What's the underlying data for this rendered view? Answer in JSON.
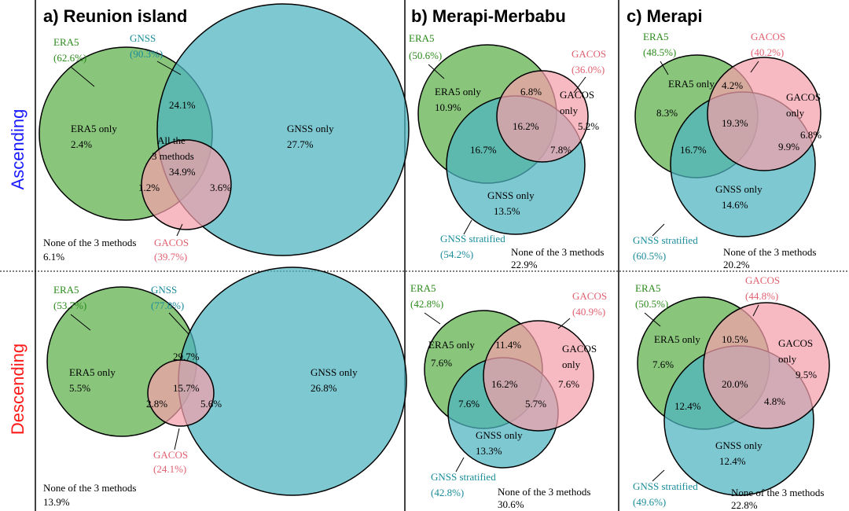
{
  "columns": [
    "a) Reunion island",
    "b) Merapi-Merbabu",
    "c) Merapi"
  ],
  "rows": [
    "Ascending",
    "Descending"
  ],
  "panels": [
    {
      "texts": [
        "ERA5",
        "(62.6%)",
        "GNSS",
        "(90.3%)",
        "ERA5 only",
        "2.4%",
        "24.1%",
        "GNSS only",
        "27.7%",
        "All the",
        "3 methods",
        "34.9%",
        "1.2%",
        "3.6%",
        "GACOS",
        "(39.7%)",
        "None of the 3 methods",
        "6.1%"
      ]
    },
    {
      "texts": [
        "ERA5",
        "(50.6%)",
        "GACOS",
        "(36.0%)",
        "ERA5 only",
        "10.9%",
        "6.8%",
        "GACOS",
        "only",
        "5.2%",
        "16.2%",
        "16.7%",
        "7.8%",
        "GNSS only",
        "13.5%",
        "GNSS stratified",
        "(54.2%)",
        "None of the 3 methods",
        "22.9%"
      ]
    },
    {
      "texts": [
        "ERA5",
        "(48.5%)",
        "GACOS",
        "(40.2%)",
        "ERA5 only",
        "8.3%",
        "4.2%",
        "GACOS",
        "only",
        "6.8%",
        "19.3%",
        "16.7%",
        "9.9%",
        "GNSS only",
        "14.6%",
        "GNSS stratified",
        "(60.5%)",
        "None of the 3 methods",
        "20.2%"
      ]
    },
    {
      "texts": [
        "ERA5",
        "(53.7%)",
        "GNSS",
        "(77.8%)",
        "ERA5 only",
        "5.5%",
        "29.7%",
        "GNSS only",
        "26.8%",
        "15.7%",
        "2.8%",
        "5.6%",
        "GACOS",
        "(24.1%)",
        "None of the 3 methods",
        "13.9%"
      ]
    },
    {
      "texts": [
        "ERA5",
        "(42.8%)",
        "GACOS",
        "(40.9%)",
        "ERA5 only",
        "7.6%",
        "11.4%",
        "GACOS",
        "only",
        "7.6%",
        "16.2%",
        "7.6%",
        "5.7%",
        "GNSS only",
        "13.3%",
        "GNSS stratified",
        "(42.8%)",
        "None of the 3 methods",
        "30.6%"
      ]
    },
    {
      "texts": [
        "ERA5",
        "(50.5%)",
        "GACOS",
        "(44.8%)",
        "ERA5 only",
        "10.5%",
        "GACOS",
        "only",
        "7.6%",
        "20.0%",
        "9.5%",
        "12.4%",
        "4.8%",
        "GNSS only",
        "12.4%",
        "GNSS stratified",
        "(49.6%)",
        "None of the 3 methods",
        "22.8%"
      ]
    }
  ]
}
